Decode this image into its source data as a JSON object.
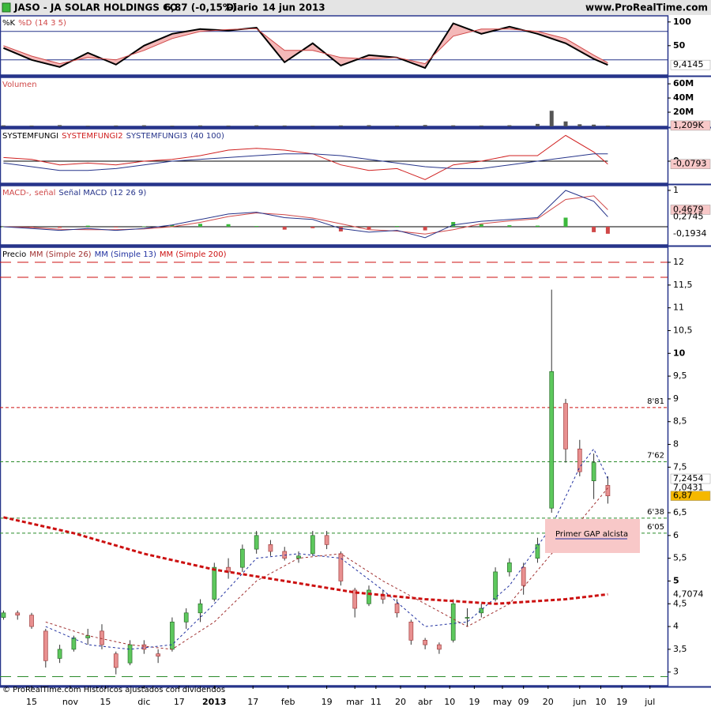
{
  "header": {
    "symbol": "JASO - JA SOLAR HOLDINGS CO.",
    "quote": "6,87 (-0,15%)",
    "period": "Diario",
    "date": "14 jun 2013",
    "site": "www.ProRealTime.com"
  },
  "footer": {
    "text": "© ProRealTime.com Históricos ajustados con dividendos"
  },
  "chart_data": [
    {
      "type": "line",
      "params": "(14 3 5)",
      "fill_between": "#f4b8b8",
      "x": [
        0,
        8,
        16,
        24,
        32,
        40,
        48,
        56,
        64,
        72,
        80,
        88,
        96,
        104,
        112,
        120,
        128,
        136,
        144,
        152,
        160,
        168,
        172
      ],
      "series": [
        {
          "name": "%K",
          "color": "#000000",
          "width": 2,
          "values": [
            45,
            20,
            5,
            35,
            10,
            50,
            75,
            85,
            82,
            88,
            15,
            55,
            8,
            30,
            25,
            3,
            97,
            75,
            90,
            75,
            55,
            22,
            9.4145
          ],
          "last_label": "9,4145",
          "label_box": "#ffffff"
        },
        {
          "name": "%D",
          "color": "#d04848",
          "width": 1,
          "values": [
            50,
            28,
            12,
            25,
            20,
            40,
            65,
            80,
            84,
            86,
            40,
            40,
            25,
            22,
            25,
            12,
            70,
            85,
            85,
            80,
            65,
            30,
            14
          ]
        }
      ],
      "ylim": [
        -12,
        113
      ],
      "yticks": [
        100,
        50
      ],
      "hlines": [
        {
          "value": 80,
          "color": "#26348a",
          "style": "solid"
        },
        {
          "value": 20,
          "color": "#26348a",
          "style": "solid"
        }
      ]
    },
    {
      "type": "bar",
      "series": [
        {
          "name": "Volumen",
          "color": "#555555",
          "legend_color": "#d04848",
          "x": [
            0,
            8,
            16,
            24,
            32,
            40,
            48,
            56,
            64,
            72,
            80,
            88,
            96,
            104,
            112,
            120,
            128,
            136,
            144,
            152,
            156,
            160,
            164,
            168,
            172
          ],
          "values": [
            1500000,
            1200000,
            1800000,
            1000000,
            1300000,
            1600000,
            1100000,
            1400000,
            1200000,
            1500000,
            1300000,
            1000000,
            1400000,
            1700000,
            1200000,
            2000000,
            1500000,
            1300000,
            1600000,
            3500000,
            22000000,
            7000000,
            3000000,
            2500000,
            1209000
          ],
          "last_label": "1,209K",
          "label_box": "#f8c8c8"
        }
      ],
      "ylim": [
        0,
        69000000
      ],
      "yticks": [
        {
          "value": 60000000,
          "label": "60M"
        },
        {
          "value": 40000000,
          "label": "40M"
        },
        {
          "value": 20000000,
          "label": "20M"
        }
      ]
    },
    {
      "type": "line",
      "params": "(40 100)",
      "x": [
        0,
        8,
        16,
        24,
        32,
        40,
        48,
        56,
        64,
        72,
        80,
        88,
        96,
        104,
        112,
        120,
        128,
        136,
        144,
        152,
        160,
        168,
        172
      ],
      "series": [
        {
          "name": "SYSTEMFUNGI",
          "color": "#000000",
          "width": 1,
          "values": [
            0,
            0,
            0,
            0,
            0,
            0,
            0,
            0,
            0,
            0,
            0,
            0,
            0,
            0,
            0,
            0,
            0,
            0,
            0,
            0,
            0,
            0,
            0
          ]
        },
        {
          "name": "SYSTEMFUNGI2",
          "color": "#d02020",
          "width": 1,
          "values": [
            0.1,
            0.05,
            -0.1,
            -0.05,
            -0.1,
            0,
            0.05,
            0.15,
            0.3,
            0.35,
            0.3,
            0.2,
            -0.1,
            -0.25,
            -0.2,
            -0.5,
            -0.1,
            0,
            0.15,
            0.15,
            0.7,
            0.25,
            -0.0793
          ],
          "last_label": "-0,0793",
          "label_box": "#f8c8c8"
        },
        {
          "name": "SYSTEMFUNGI3",
          "color": "#26348a",
          "width": 1,
          "values": [
            -0.05,
            -0.15,
            -0.25,
            -0.25,
            -0.2,
            -0.1,
            0,
            0.05,
            0.1,
            0.15,
            0.2,
            0.2,
            0.15,
            0.05,
            -0.05,
            -0.15,
            -0.2,
            -0.2,
            -0.1,
            0,
            0.1,
            0.2,
            0.2
          ]
        }
      ],
      "ylim": [
        -0.6,
        0.88
      ],
      "yticks": [
        0
      ]
    },
    {
      "type": "macd",
      "params": "(12 26 9)",
      "x": [
        0,
        8,
        16,
        24,
        32,
        40,
        48,
        56,
        64,
        72,
        80,
        88,
        96,
        104,
        112,
        120,
        128,
        136,
        144,
        152,
        160,
        168,
        172
      ],
      "series": [
        {
          "name": "MACD-,",
          "color": "#d04848",
          "style": "histogram",
          "colors": [
            "#3cb83c",
            "#d04848"
          ],
          "values": [
            0,
            -0.03,
            -0.03,
            0.03,
            -0.02,
            0.01,
            0.05,
            0.08,
            0.07,
            0.02,
            -0.08,
            -0.04,
            -0.13,
            -0.07,
            0.02,
            -0.1,
            0.13,
            0.07,
            0.04,
            0.03,
            0.25,
            -0.15,
            -0.1934
          ],
          "last_label": "-0,1934"
        },
        {
          "name": "señal",
          "color": "#d04848",
          "width": 1,
          "values": [
            0,
            -0.02,
            -0.07,
            -0.08,
            -0.08,
            -0.06,
            0,
            0.12,
            0.28,
            0.38,
            0.33,
            0.24,
            0.08,
            -0.08,
            -0.12,
            -0.2,
            -0.08,
            0.08,
            0.16,
            0.22,
            0.75,
            0.85,
            0.4679
          ],
          "last_label": "0,4679",
          "label_box": "#f8c8c8"
        },
        {
          "name": "Señal MACD",
          "color": "#26348a",
          "width": 1,
          "values": [
            0,
            -0.05,
            -0.1,
            -0.05,
            -0.1,
            -0.05,
            0.05,
            0.2,
            0.35,
            0.4,
            0.25,
            0.2,
            -0.05,
            -0.15,
            -0.1,
            -0.3,
            0.05,
            0.15,
            0.2,
            0.25,
            1,
            0.7,
            0.2745
          ],
          "last_label": "0,2745"
        }
      ],
      "ylim": [
        -0.5,
        1.13
      ],
      "yticks": [
        1
      ],
      "hlines": [
        {
          "value": 0,
          "color": "#000000",
          "style": "solid"
        }
      ]
    },
    {
      "type": "candlestick",
      "annotation": "Primer GAP alcista",
      "xlim": [
        -1,
        189
      ],
      "xticks": [
        {
          "value": 8,
          "label": "15"
        },
        {
          "value": 19,
          "label": "nov"
        },
        {
          "value": 29,
          "label": "15"
        },
        {
          "value": 40,
          "label": "dic"
        },
        {
          "value": 50,
          "label": "17"
        },
        {
          "value": 60,
          "label": "2013"
        },
        {
          "value": 71,
          "label": "17"
        },
        {
          "value": 81,
          "label": "feb"
        },
        {
          "value": 92,
          "label": "19"
        },
        {
          "value": 100,
          "label": "mar"
        },
        {
          "value": 106,
          "label": "11"
        },
        {
          "value": 113,
          "label": "20"
        },
        {
          "value": 120,
          "label": "abr"
        },
        {
          "value": 127,
          "label": "10"
        },
        {
          "value": 134,
          "label": "19"
        },
        {
          "value": 142,
          "label": "may"
        },
        {
          "value": 148,
          "label": "09"
        },
        {
          "value": 155,
          "label": "20"
        },
        {
          "value": 164,
          "label": "jun"
        },
        {
          "value": 170,
          "label": "10"
        },
        {
          "value": 176,
          "label": "19"
        },
        {
          "value": 184,
          "label": "jul"
        }
      ],
      "ylim": [
        2.7,
        12.33
      ],
      "yticks": [
        3,
        {
          "value": 3.5,
          "label": "3,5"
        },
        4,
        {
          "value": 4.5,
          "label": "4,5"
        },
        5,
        {
          "value": 5.5,
          "label": "5,5"
        },
        6,
        {
          "value": 6.5,
          "label": "6,5"
        },
        {
          "value": 7.5,
          "label": "7,5"
        },
        8,
        {
          "value": 8.5,
          "label": "8,5"
        },
        9,
        {
          "value": 9.5,
          "label": "9,5"
        },
        10,
        {
          "value": 10.5,
          "label": "10,5"
        },
        11,
        {
          "value": 11.5,
          "label": "11,5"
        },
        12
      ],
      "hlines": [
        {
          "value": 12,
          "color": "#cc1010",
          "style": "long-dashed"
        },
        {
          "value": 11.67,
          "color": "#cc1010",
          "style": "long-dashed"
        },
        {
          "value": 8.81,
          "label": "8'81",
          "color": "#cc1010",
          "style": "dashed"
        },
        {
          "value": 7.62,
          "label": "7'62",
          "color": "#2a8a2a",
          "style": "dashed"
        },
        {
          "value": 6.38,
          "label": "6'38",
          "color": "#2a8a2a",
          "style": "dashed"
        },
        {
          "value": 6.05,
          "label": "6'05",
          "color": "#2a8a2a",
          "style": "dashed"
        },
        {
          "value": 2.9,
          "color": "#2a8a2a",
          "style": "long-dashed"
        }
      ],
      "series": [
        {
          "name": "Precio",
          "color": "#000000",
          "up_color": "#5dc85d",
          "down_color": "#e89090",
          "x": [
            0,
            4,
            8,
            12,
            16,
            20,
            24,
            28,
            32,
            36,
            40,
            44,
            48,
            52,
            56,
            60,
            64,
            68,
            72,
            76,
            80,
            84,
            88,
            92,
            96,
            100,
            104,
            108,
            112,
            116,
            120,
            124,
            128,
            132,
            136,
            140,
            144,
            148,
            152,
            156,
            160,
            164,
            168,
            172
          ],
          "open": [
            4.2,
            4.3,
            4.25,
            3.9,
            3.3,
            3.5,
            3.75,
            3.9,
            3.4,
            3.2,
            3.6,
            3.4,
            3.5,
            4.1,
            4.3,
            4.6,
            5.3,
            5.3,
            5.7,
            5.8,
            5.65,
            5.5,
            5.6,
            6.0,
            5.6,
            4.8,
            4.5,
            4.7,
            4.5,
            4.1,
            3.7,
            3.6,
            3.7,
            4.2,
            4.3,
            4.6,
            5.2,
            5.3,
            5.5,
            6.6,
            8.9,
            7.9,
            7.2,
            7.1
          ],
          "high": [
            4.35,
            4.35,
            4.3,
            3.95,
            3.6,
            3.8,
            3.95,
            4.05,
            3.45,
            3.7,
            3.7,
            3.5,
            4.2,
            4.4,
            4.6,
            5.4,
            5.5,
            5.8,
            6.1,
            5.9,
            5.75,
            5.65,
            6.1,
            6.1,
            5.65,
            4.85,
            4.9,
            4.8,
            4.6,
            4.15,
            3.75,
            3.65,
            4.6,
            4.4,
            4.5,
            5.3,
            5.5,
            5.4,
            5.95,
            11.4,
            9.0,
            8.1,
            7.8,
            7.3
          ],
          "low": [
            4.15,
            4.15,
            3.95,
            3.1,
            3.2,
            3.45,
            3.6,
            3.5,
            2.95,
            3.15,
            3.4,
            3.2,
            3.45,
            3.95,
            4.1,
            4.55,
            5.05,
            5.2,
            5.6,
            5.55,
            5.45,
            5.4,
            5.55,
            5.7,
            4.9,
            4.2,
            4.45,
            4.5,
            4.2,
            3.6,
            3.5,
            3.4,
            3.65,
            4.0,
            4.2,
            4.55,
            5.1,
            4.7,
            5.4,
            6.5,
            7.6,
            7.3,
            6.8,
            6.7
          ],
          "close": [
            4.3,
            4.25,
            4.0,
            3.25,
            3.5,
            3.75,
            3.8,
            3.6,
            3.1,
            3.6,
            3.5,
            3.35,
            4.1,
            4.3,
            4.5,
            5.3,
            5.2,
            5.7,
            6.0,
            5.65,
            5.5,
            5.55,
            6.0,
            5.8,
            5.0,
            4.4,
            4.8,
            4.6,
            4.3,
            3.7,
            3.6,
            3.5,
            4.5,
            4.2,
            4.4,
            5.2,
            5.4,
            4.9,
            5.8,
            9.6,
            7.9,
            7.4,
            7.6,
            6.87
          ],
          "last_label": "6,87",
          "label_box": "#f5b800"
        },
        {
          "name": "MM (Simple 26)",
          "color": "#a03030",
          "width": 1,
          "dash": "3 3",
          "x": [
            12,
            24,
            36,
            48,
            60,
            72,
            84,
            96,
            108,
            120,
            132,
            144,
            156,
            164,
            172
          ],
          "values": [
            4.1,
            3.8,
            3.6,
            3.5,
            4.1,
            5.0,
            5.5,
            5.6,
            5.0,
            4.5,
            4.0,
            4.5,
            5.6,
            6.3,
            7.0431
          ],
          "last_label": "7,0431"
        },
        {
          "name": "MM (Simple 13)",
          "color": "#2030a0",
          "width": 1,
          "dash": "3 3",
          "x": [
            12,
            24,
            36,
            48,
            60,
            72,
            84,
            96,
            108,
            120,
            132,
            144,
            156,
            164,
            168,
            172
          ],
          "values": [
            4.0,
            3.6,
            3.5,
            3.6,
            4.5,
            5.5,
            5.6,
            5.5,
            4.8,
            4.0,
            4.1,
            4.9,
            6.2,
            7.5,
            7.9,
            7.2454
          ],
          "last_label": "7,2454",
          "label_box": "#ffffff"
        },
        {
          "name": "MM (Simple 200)",
          "color": "#cc1010",
          "width": 3,
          "dash": "5 3",
          "x": [
            0,
            20,
            40,
            60,
            80,
            100,
            120,
            140,
            160,
            172
          ],
          "values": [
            6.4,
            6.05,
            5.6,
            5.25,
            5.0,
            4.75,
            4.6,
            4.5,
            4.6,
            4.7074
          ],
          "last_label": "4,7074",
          "label_color": "#cc1010"
        }
      ]
    }
  ]
}
